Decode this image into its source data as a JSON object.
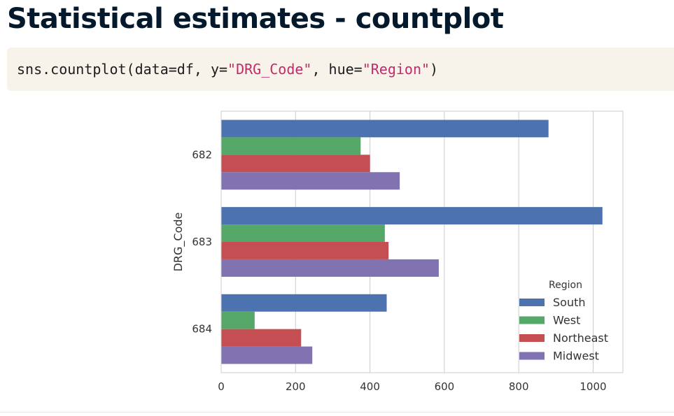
{
  "page": {
    "title": "Statistical estimates - countplot"
  },
  "code": {
    "prefix": "sns.countplot(data=df, y=",
    "y_arg": "\"DRG_Code\"",
    "middle": ", hue=",
    "hue_arg": "\"Region\"",
    "suffix": ")"
  },
  "colors": {
    "South": "#4c72b0",
    "West": "#55a868",
    "Northeast": "#c44e52",
    "Midwest": "#8172b2"
  },
  "chart_data": {
    "type": "bar",
    "orientation": "horizontal",
    "title": "",
    "xlabel": "",
    "ylabel": "DRG_Code",
    "categories": [
      "682",
      "683",
      "684"
    ],
    "series": [
      {
        "name": "South",
        "values": [
          880,
          1025,
          445
        ]
      },
      {
        "name": "West",
        "values": [
          375,
          440,
          90
        ]
      },
      {
        "name": "Northeast",
        "values": [
          400,
          450,
          215
        ]
      },
      {
        "name": "Midwest",
        "values": [
          480,
          585,
          245
        ]
      }
    ],
    "xlim": [
      0,
      1080
    ],
    "xticks": [
      0,
      200,
      400,
      600,
      800,
      1000
    ],
    "grid": "vertical",
    "legend": {
      "title": "Region",
      "placement": "lower-right",
      "entries": [
        "South",
        "West",
        "Northeast",
        "Midwest"
      ]
    }
  }
}
